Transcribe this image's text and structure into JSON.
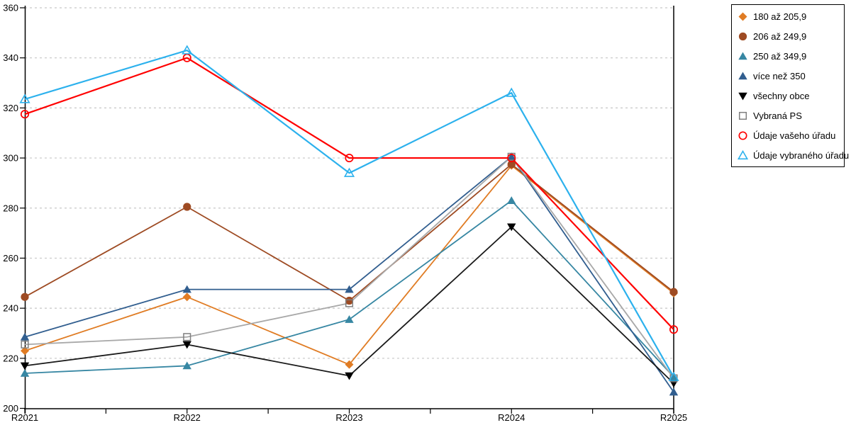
{
  "chart_data": {
    "type": "line",
    "title": "",
    "xlabel": "",
    "ylabel": "",
    "categories": [
      "R2021",
      "R2022",
      "R2023",
      "R2024",
      "R2025"
    ],
    "y_ticks": [
      "200",
      "220",
      "240",
      "260",
      "280",
      "300",
      "320",
      "340",
      "360"
    ],
    "ylim": [
      200,
      360
    ],
    "grid": "dashed-horizontal",
    "legend_position": "right",
    "series": [
      {
        "name": "180 až 205,9",
        "marker": "diamond",
        "color": "#E07C24",
        "line_color": "#E07C24",
        "values": [
          223,
          244.5,
          217.5,
          297,
          246
        ]
      },
      {
        "name": "206 až 249,9",
        "marker": "circle",
        "color": "#9E4B23",
        "line_color": "#9E4B23",
        "values": [
          244.5,
          280.5,
          243,
          297.5,
          246.5
        ]
      },
      {
        "name": "250 až 349,9",
        "marker": "triangle",
        "color": "#3787A3",
        "line_color": "#3787A3",
        "values": [
          214,
          217,
          235.5,
          283,
          212.5
        ]
      },
      {
        "name": "více než 350",
        "marker": "triangle",
        "color": "#315E8F",
        "line_color": "#315E8F",
        "values": [
          228.5,
          247.5,
          247.5,
          300.5,
          206.5
        ]
      },
      {
        "name": "všechny obce",
        "marker": "triangle-down",
        "color": "#000000",
        "line_color": "#1A1A1A",
        "values": [
          217,
          225.5,
          213,
          272.5,
          210
        ]
      },
      {
        "name": "Vybraná PS",
        "marker": "square-open",
        "color": "#7F7F7F",
        "line_color": "#A8A8A8",
        "values": [
          225.5,
          228.5,
          242,
          300.5,
          212
        ]
      },
      {
        "name": "Údaje vašeho úřadu",
        "marker": "circle-open",
        "color": "#FF0000",
        "line_color": "#FF0000",
        "values": [
          317.5,
          340,
          300,
          300,
          231.5
        ]
      },
      {
        "name": "Údaje vybraného úřadu",
        "marker": "triangle-open",
        "color": "#2CB1ED",
        "line_color": "#2CB1ED",
        "values": [
          323.5,
          343,
          294,
          326,
          212.5
        ]
      }
    ]
  },
  "style_colors": {
    "gridline": "#C6C6C6",
    "axis": "#000000"
  }
}
